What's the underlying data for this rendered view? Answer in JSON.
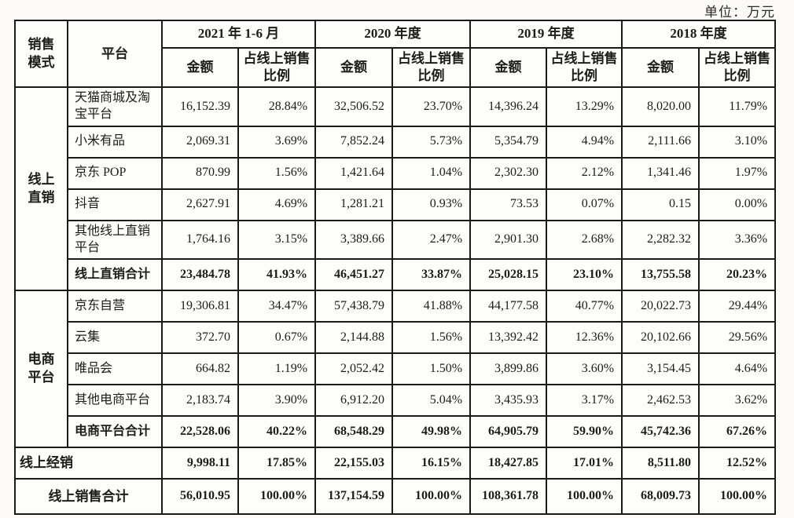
{
  "unit_label": "单位：万元",
  "table": {
    "header": {
      "sales_mode": "销售模式",
      "platform": "平台",
      "amount_label": "金额",
      "ratio_label": "占线上销售比例",
      "periods": [
        "2021 年 1-6 月",
        "2020 年度",
        "2019 年度",
        "2018 年度"
      ]
    },
    "groups": [
      {
        "mode": "线上直销",
        "rows": [
          {
            "platform": "天猫商城及淘宝平台",
            "values": [
              "16,152.39",
              "28.84%",
              "32,506.52",
              "23.70%",
              "14,396.24",
              "13.29%",
              "8,020.00",
              "11.79%"
            ]
          },
          {
            "platform": "小米有品",
            "values": [
              "2,069.31",
              "3.69%",
              "7,852.24",
              "5.73%",
              "5,354.79",
              "4.94%",
              "2,111.66",
              "3.10%"
            ]
          },
          {
            "platform": "京东 POP",
            "values": [
              "870.99",
              "1.56%",
              "1,421.64",
              "1.04%",
              "2,302.30",
              "2.12%",
              "1,341.46",
              "1.97%"
            ]
          },
          {
            "platform": "抖音",
            "values": [
              "2,627.91",
              "4.69%",
              "1,281.21",
              "0.93%",
              "73.53",
              "0.07%",
              "0.15",
              "0.00%"
            ]
          },
          {
            "platform": "其他线上直销平台",
            "values": [
              "1,764.16",
              "3.15%",
              "3,389.66",
              "2.47%",
              "2,901.30",
              "2.68%",
              "2,282.32",
              "3.36%"
            ]
          }
        ],
        "total": {
          "label": "线上直销合计",
          "values": [
            "23,484.78",
            "41.93%",
            "46,451.27",
            "33.87%",
            "25,028.15",
            "23.10%",
            "13,755.58",
            "20.23%"
          ]
        }
      },
      {
        "mode": "电商平台",
        "rows": [
          {
            "platform": "京东自营",
            "values": [
              "19,306.81",
              "34.47%",
              "57,438.79",
              "41.88%",
              "44,177.58",
              "40.77%",
              "20,022.73",
              "29.44%"
            ]
          },
          {
            "platform": "云集",
            "values": [
              "372.70",
              "0.67%",
              "2,144.88",
              "1.56%",
              "13,392.42",
              "12.36%",
              "20,102.66",
              "29.56%"
            ]
          },
          {
            "platform": "唯品会",
            "values": [
              "664.82",
              "1.19%",
              "2,052.42",
              "1.50%",
              "3,899.86",
              "3.60%",
              "3,154.45",
              "4.64%"
            ]
          },
          {
            "platform": "其他电商平台",
            "values": [
              "2,183.74",
              "3.90%",
              "6,912.20",
              "5.04%",
              "3,435.93",
              "3.17%",
              "2,462.53",
              "3.62%"
            ]
          }
        ],
        "total": {
          "label": "电商平台合计",
          "values": [
            "22,528.06",
            "40.22%",
            "68,548.29",
            "49.98%",
            "64,905.79",
            "59.90%",
            "45,742.36",
            "67.26%"
          ]
        }
      }
    ],
    "standalone_rows": [
      {
        "label": "线上经销",
        "values": [
          "9,998.11",
          "17.85%",
          "22,155.03",
          "16.15%",
          "18,427.85",
          "17.01%",
          "8,511.80",
          "12.52%"
        ]
      },
      {
        "label": "线上销售合计",
        "values": [
          "56,010.95",
          "100.00%",
          "137,154.59",
          "100.00%",
          "108,361.78",
          "100.00%",
          "68,009.73",
          "100.00%"
        ]
      }
    ]
  }
}
